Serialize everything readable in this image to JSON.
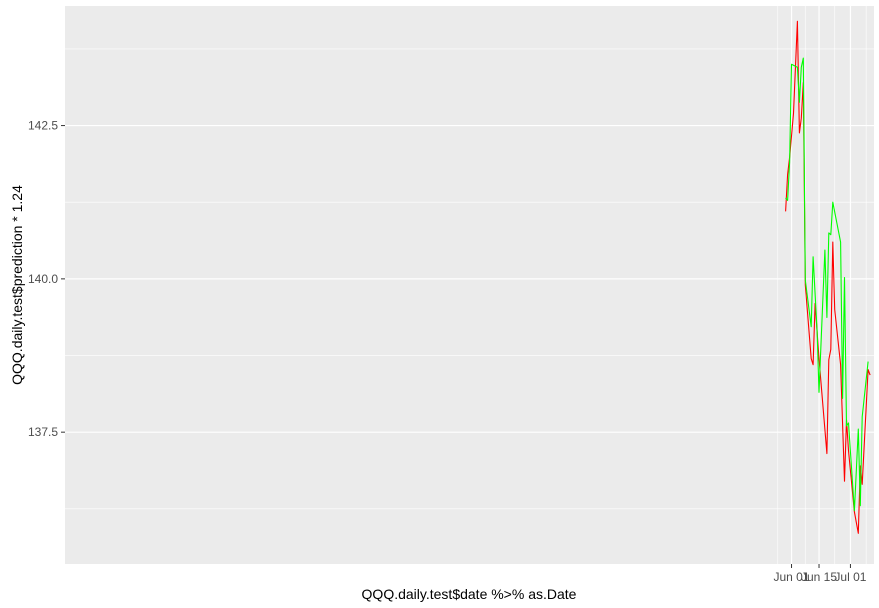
{
  "chart_data": {
    "type": "line",
    "title": "",
    "xlabel": "QQQ.daily.test$date %>% as.Date",
    "ylabel": "QQQ.daily.test$prediction * 1.24",
    "x_ticks": [
      {
        "date": "2020-06-01",
        "label": "Jun 01"
      },
      {
        "date": "2020-06-15",
        "label": "Jun 15"
      },
      {
        "date": "2020-07-01",
        "label": "Jul 01"
      }
    ],
    "y_ticks": [
      137.5,
      140.0,
      142.5
    ],
    "xlim": [
      "2019-05-28",
      "2020-07-13"
    ],
    "ylim": [
      135.35,
      144.45
    ],
    "grid": true,
    "background": "#ebebeb",
    "series": [
      {
        "color": "#ff0000",
        "points": [
          {
            "x": "2020-05-29",
            "y": 141.1
          },
          {
            "x": "2020-05-30",
            "y": 141.7
          },
          {
            "x": "2020-05-31",
            "y": 141.98
          },
          {
            "x": "2020-06-02",
            "y": 142.7
          },
          {
            "x": "2020-06-04",
            "y": 144.2
          },
          {
            "x": "2020-06-05",
            "y": 142.38
          },
          {
            "x": "2020-06-06",
            "y": 142.62
          },
          {
            "x": "2020-06-07",
            "y": 143.2
          },
          {
            "x": "2020-06-08",
            "y": 139.9
          },
          {
            "x": "2020-06-11",
            "y": 138.7
          },
          {
            "x": "2020-06-12",
            "y": 138.6
          },
          {
            "x": "2020-06-13",
            "y": 139.6
          },
          {
            "x": "2020-06-15",
            "y": 138.7
          },
          {
            "x": "2020-06-19",
            "y": 137.15
          },
          {
            "x": "2020-06-20",
            "y": 138.68
          },
          {
            "x": "2020-06-21",
            "y": 138.85
          },
          {
            "x": "2020-06-22",
            "y": 140.6
          },
          {
            "x": "2020-06-23",
            "y": 139.5
          },
          {
            "x": "2020-06-26",
            "y": 138.6
          },
          {
            "x": "2020-06-28",
            "y": 136.7
          },
          {
            "x": "2020-06-29",
            "y": 137.7
          },
          {
            "x": "2020-06-30",
            "y": 137.2
          },
          {
            "x": "2020-07-03",
            "y": 136.2
          },
          {
            "x": "2020-07-05",
            "y": 135.85
          },
          {
            "x": "2020-07-06",
            "y": 136.95
          },
          {
            "x": "2020-07-07",
            "y": 136.65
          },
          {
            "x": "2020-07-10",
            "y": 138.52
          },
          {
            "x": "2020-07-11",
            "y": 138.43
          }
        ]
      },
      {
        "color": "#00ff00",
        "points": [
          {
            "x": "2020-05-29",
            "y": 141.32
          },
          {
            "x": "2020-05-30",
            "y": 141.28
          },
          {
            "x": "2020-05-31",
            "y": 141.9
          },
          {
            "x": "2020-06-01",
            "y": 143.5
          },
          {
            "x": "2020-06-04",
            "y": 143.45
          },
          {
            "x": "2020-06-05",
            "y": 142.88
          },
          {
            "x": "2020-06-06",
            "y": 143.45
          },
          {
            "x": "2020-06-07",
            "y": 143.6
          },
          {
            "x": "2020-06-08",
            "y": 139.98
          },
          {
            "x": "2020-06-11",
            "y": 139.22
          },
          {
            "x": "2020-06-12",
            "y": 140.36
          },
          {
            "x": "2020-06-14",
            "y": 139.15
          },
          {
            "x": "2020-06-15",
            "y": 138.15
          },
          {
            "x": "2020-06-18",
            "y": 140.47
          },
          {
            "x": "2020-06-19",
            "y": 139.37
          },
          {
            "x": "2020-06-20",
            "y": 140.75
          },
          {
            "x": "2020-06-21",
            "y": 140.72
          },
          {
            "x": "2020-06-22",
            "y": 141.25
          },
          {
            "x": "2020-06-26",
            "y": 140.6
          },
          {
            "x": "2020-06-27",
            "y": 138.05
          },
          {
            "x": "2020-06-28",
            "y": 140.02
          },
          {
            "x": "2020-06-29",
            "y": 137.6
          },
          {
            "x": "2020-06-30",
            "y": 137.65
          },
          {
            "x": "2020-07-03",
            "y": 136.22
          },
          {
            "x": "2020-07-05",
            "y": 137.55
          },
          {
            "x": "2020-07-06",
            "y": 136.3
          },
          {
            "x": "2020-07-07",
            "y": 137.75
          },
          {
            "x": "2020-07-10",
            "y": 138.65
          }
        ]
      }
    ]
  }
}
